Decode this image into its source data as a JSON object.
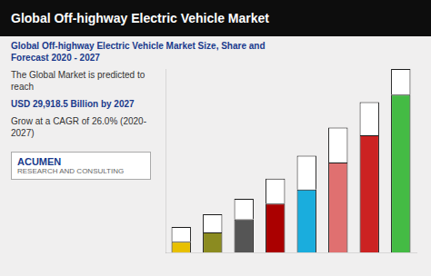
{
  "chart_data": {
    "type": "bar",
    "title": "Global Off-highway Electric Vehicle Market",
    "subtitle": [
      "Global Off-highway Electric Vehicle Market Size, Share and",
      "Forecast 2020 - 2027"
    ],
    "annotations": [
      "The Global Market is predicted to reach",
      "USD 29,918.5 Billion by 2027",
      "Grow at a CAGR of 26.0% (2020-2027)",
      "ACUMEN",
      "RESEARCH AND CONSULTING"
    ],
    "categories": [
      null,
      null,
      null,
      null,
      null,
      null,
      null,
      null
    ],
    "series": [
      {
        "colors": [
          "#e8c000",
          "#8b8b20",
          "#555555",
          "#aa0000",
          "#1aaddd",
          "#e07070",
          "#cc2222",
          "#44bb44"
        ],
        "values": [
          0.42,
          0.78,
          1.302,
          1.914,
          2.47,
          3.528,
          4.602,
          6.192
        ]
      },
      {
        "color": "#ffffff",
        "values": [
          0.58,
          0.72,
          0.798,
          0.986,
          1.33,
          1.372,
          1.298,
          1.008
        ]
      }
    ],
    "stacked": true,
    "ylim": [
      0,
      7.2
    ],
    "grid": false,
    "tick_labels": false
  }
}
